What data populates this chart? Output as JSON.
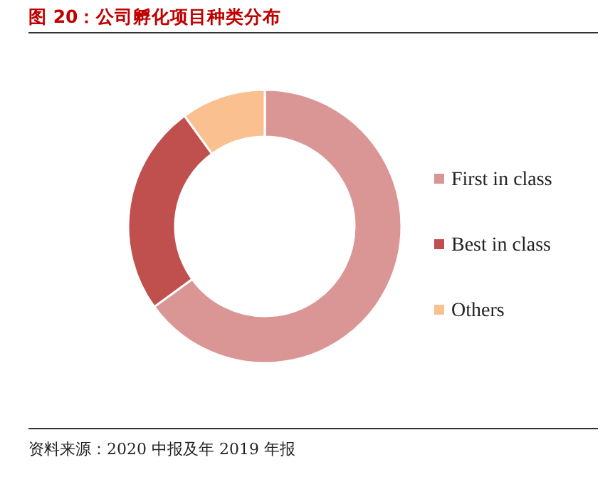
{
  "chart_data": {
    "type": "donut",
    "title": "图 20：公司孵化项目种类分布",
    "categories": [
      "First in class",
      "Best in class",
      "Others"
    ],
    "values": [
      65,
      25,
      10
    ],
    "colors": [
      "#da9694",
      "#c0504d",
      "#fac090"
    ],
    "legend": "right",
    "annotations": [
      "资料来源：2020 中报及年 2019 年报"
    ]
  }
}
